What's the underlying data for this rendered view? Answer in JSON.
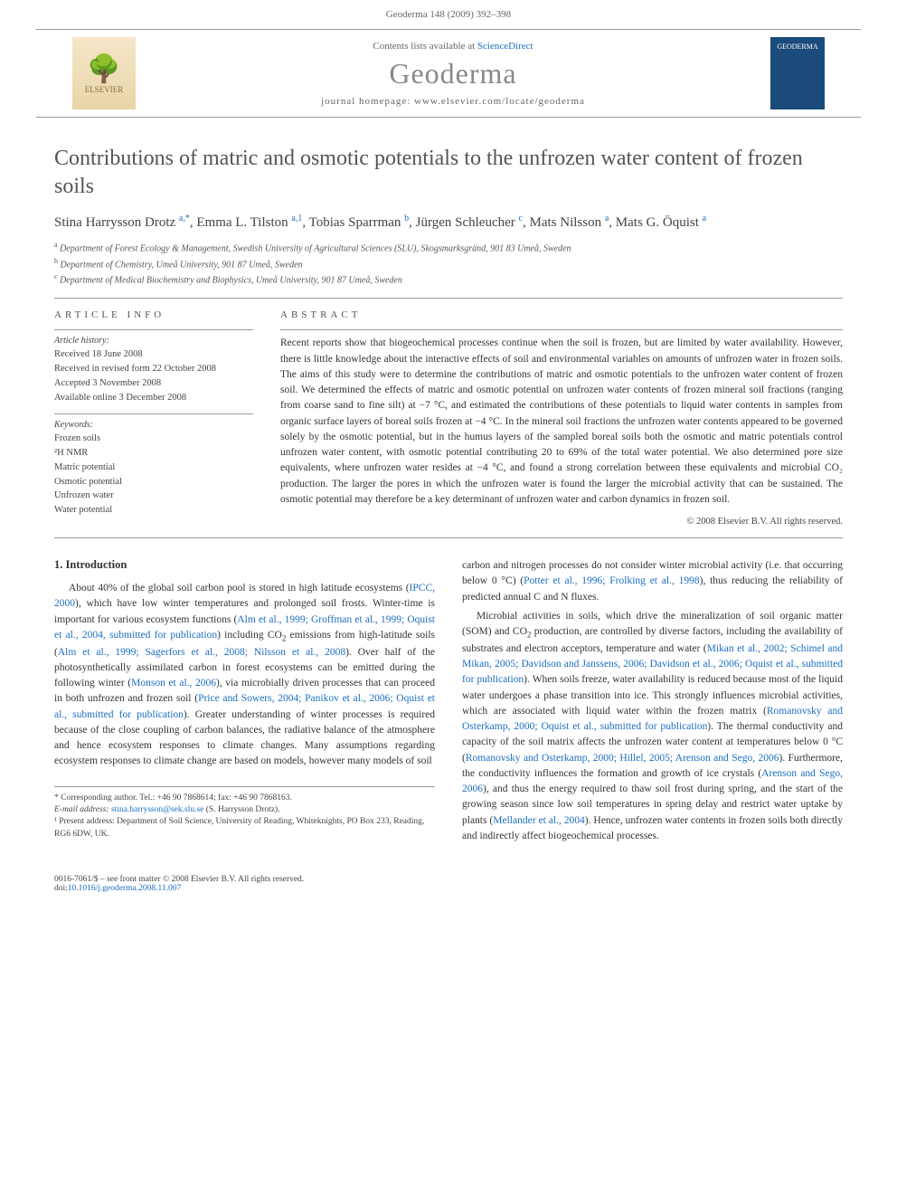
{
  "header": {
    "running_head": "Geoderma 148 (2009) 392–398"
  },
  "banner": {
    "elsevier_label": "ELSEVIER",
    "contents_prefix": "Contents lists available at ",
    "contents_link": "ScienceDirect",
    "journal_name": "Geoderma",
    "homepage_prefix": "journal homepage: ",
    "homepage_url": "www.elsevier.com/locate/geoderma",
    "cover_label": "GEODERMA"
  },
  "article": {
    "title": "Contributions of matric and osmotic potentials to the unfrozen water content of frozen soils",
    "authors_html": "Stina Harrysson Drotz <span class='sup'>a,*</span>, Emma L. Tilston <span class='sup'>a,1</span>, Tobias Sparrman <span class='sup'>b</span>, Jürgen Schleucher <span class='sup'>c</span>, Mats Nilsson <span class='sup'>a</span>, Mats G. Öquist <span class='sup'>a</span>",
    "affiliations": [
      {
        "sup": "a",
        "text": "Department of Forest Ecology & Management, Swedish University of Agricultural Sciences (SLU), Skogsmarksgränd, 901 83 Umeå, Sweden"
      },
      {
        "sup": "b",
        "text": "Department of Chemistry, Umeå University, 901 87 Umeå, Sweden"
      },
      {
        "sup": "c",
        "text": "Department of Medical Biochemistry and Biophysics, Umeå University, 901 87 Umeå, Sweden"
      }
    ]
  },
  "info": {
    "label": "ARTICLE INFO",
    "history_label": "Article history:",
    "history": [
      "Received 18 June 2008",
      "Received in revised form 22 October 2008",
      "Accepted 3 November 2008",
      "Available online 3 December 2008"
    ],
    "keywords_label": "Keywords:",
    "keywords": [
      "Frozen soils",
      "²H NMR",
      "Matric potential",
      "Osmotic potential",
      "Unfrozen water",
      "Water potential"
    ]
  },
  "abstract": {
    "label": "ABSTRACT",
    "text": "Recent reports show that biogeochemical processes continue when the soil is frozen, but are limited by water availability. However, there is little knowledge about the interactive effects of soil and environmental variables on amounts of unfrozen water in frozen soils. The aims of this study were to determine the contributions of matric and osmotic potentials to the unfrozen water content of frozen soil. We determined the effects of matric and osmotic potential on unfrozen water contents of frozen mineral soil fractions (ranging from coarse sand to fine silt) at −7 °C, and estimated the contributions of these potentials to liquid water contents in samples from organic surface layers of boreal soils frozen at −4 °C. In the mineral soil fractions the unfrozen water contents appeared to be governed solely by the osmotic potential, but in the humus layers of the sampled boreal soils both the osmotic and matric potentials control unfrozen water content, with osmotic potential contributing 20 to 69% of the total water potential. We also determined pore size equivalents, where unfrozen water resides at −4 °C, and found a strong correlation between these equivalents and microbial CO₂ production. The larger the pores in which the unfrozen water is found the larger the microbial activity that can be sustained. The osmotic potential may therefore be a key determinant of unfrozen water and carbon dynamics in frozen soil.",
    "copyright": "© 2008 Elsevier B.V. All rights reserved."
  },
  "body": {
    "intro_heading": "1. Introduction",
    "col1_p1": "About 40% of the global soil carbon pool is stored in high latitude ecosystems (<a href='#'>IPCC, 2000</a>), which have low winter temperatures and prolonged soil frosts. Winter-time is important for various ecosystem functions (<a href='#'>Alm et al., 1999; Groffman et al., 1999; Oquist et al., 2004, submitted for publication</a>) including CO<sub>2</sub> emissions from high-latitude soils (<a href='#'>Alm et al., 1999; Sagerfors et al., 2008; Nilsson et al., 2008</a>). Over half of the photosynthetically assimilated carbon in forest ecosystems can be emitted during the following winter (<a href='#'>Monson et al., 2006</a>), via microbially driven processes that can proceed in both unfrozen and frozen soil (<a href='#'>Price and Sowers, 2004; Panikov et al., 2006; Oquist et al., submitted for publication</a>). Greater understanding of winter processes is required because of the close coupling of carbon balances, the radiative balance of the atmosphere and hence ecosystem responses to climate changes. Many assumptions regarding ecosystem responses to climate change are based on models, however many models of soil",
    "col2_p1": "carbon and nitrogen processes do not consider winter microbial activity (i.e. that occurring below 0 °C) (<a href='#'>Potter et al., 1996; Frolking et al., 1998</a>), thus reducing the reliability of predicted annual C and N fluxes.",
    "col2_p2": "Microbial activities in soils, which drive the mineralization of soil organic matter (SOM) and CO<sub>2</sub> production, are controlled by diverse factors, including the availability of substrates and electron acceptors, temperature and water (<a href='#'>Mikan et al., 2002; Schimel and Mikan, 2005; Davidson and Janssens, 2006; Davidson et al., 2006; Oquist et al., submitted for publication</a>). When soils freeze, water availability is reduced because most of the liquid water undergoes a phase transition into ice. This strongly influences microbial activities, which are associated with liquid water within the frozen matrix (<a href='#'>Romanovsky and Osterkamp, 2000; Oquist et al., submitted for publication</a>). The thermal conductivity and capacity of the soil matrix affects the unfrozen water content at temperatures below 0 °C (<a href='#'>Romanovsky and Osterkamp, 2000; Hillel, 2005; Arenson and Sego, 2006</a>). Furthermore, the conductivity influences the formation and growth of ice crystals (<a href='#'>Arenson and Sego, 2006</a>), and thus the energy required to thaw soil frost during spring, and the start of the growing season since low soil temperatures in spring delay and restrict water uptake by plants (<a href='#'>Mellander et al., 2004</a>). Hence, unfrozen water contents in frozen soils both directly and indirectly affect biogeochemical processes."
  },
  "footnotes": {
    "corr": "* Corresponding author. Tel.: +46 90 7868614; fax: +46 90 7868163.",
    "email_label": "E-mail address:",
    "email": "stina.harrysson@sek.slu.se",
    "email_suffix": "(S. Harrysson Drotz).",
    "present": "¹ Present address: Department of Soil Science, University of Reading, Whiteknights, PO Box 233, Reading, RG6 6DW, UK."
  },
  "footer": {
    "line1": "0016-7061/$ – see front matter © 2008 Elsevier B.V. All rights reserved.",
    "doi_label": "doi:",
    "doi": "10.1016/j.geoderma.2008.11.007"
  }
}
